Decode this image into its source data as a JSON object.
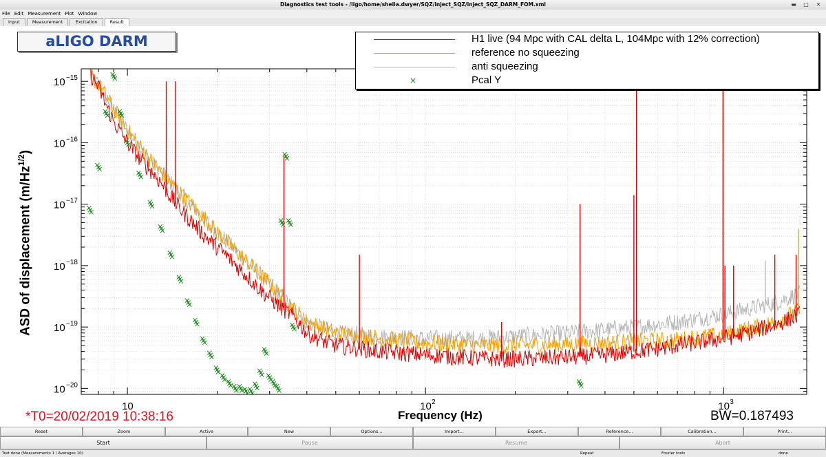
{
  "window": {
    "title": "Diagnostics test tools - /ligo/home/sheila.dwyer/SQZ/inject_SQZ/inject_SQZ_DARM_FOM.xml"
  },
  "menu": [
    "File",
    "Edit",
    "Measurement",
    "Plot",
    "Window"
  ],
  "tabs": [
    {
      "label": "Input",
      "active": false
    },
    {
      "label": "Measurement",
      "active": false
    },
    {
      "label": "Excitation",
      "active": false
    },
    {
      "label": "Result",
      "active": true
    }
  ],
  "plot": {
    "title_box": "aLIGO DARM",
    "t0": "*T0=20/02/2019 10:38:16",
    "bw": "BW=0.187493"
  },
  "chart_data": {
    "type": "line",
    "xlabel": "Frequency (Hz)",
    "ylabel": "ASD of displacement (m/Hz^1/2)",
    "x_scale": "log",
    "y_scale": "log",
    "xlim": [
      7,
      1900
    ],
    "ylim": [
      8e-21,
      1.6e-15
    ],
    "x_ticks": [
      {
        "value": 10,
        "label": "10"
      },
      {
        "value": 100,
        "label": "10"
      },
      {
        "value": 1000,
        "label": "10"
      }
    ],
    "x_tick_exponents": [
      "",
      "2",
      "3"
    ],
    "y_ticks": [
      {
        "value": 1e-15,
        "label": "10"
      },
      {
        "value": 1e-16,
        "label": "10"
      },
      {
        "value": 1e-17,
        "label": "10"
      },
      {
        "value": 1e-18,
        "label": "10"
      },
      {
        "value": 1e-19,
        "label": "10"
      },
      {
        "value": 1e-20,
        "label": "10"
      }
    ],
    "y_tick_exponents": [
      "−15",
      "−16",
      "−17",
      "−18",
      "−19",
      "−20"
    ],
    "grid": true,
    "legend_position": "top-right",
    "series": [
      {
        "name": "H1 live (94 Mpc with CAL delta L, 104Mpc with 12% correction)",
        "color": "#dd0000",
        "kind": "line",
        "x": [
          7.5,
          8,
          8.5,
          9,
          10,
          11,
          12,
          13,
          14,
          15,
          16,
          18,
          20,
          22,
          25,
          28,
          30,
          33,
          36,
          40,
          45,
          50,
          60,
          70,
          80,
          100,
          120,
          150,
          180,
          200,
          250,
          300,
          400,
          500,
          600,
          700,
          800,
          1000,
          1200,
          1500,
          1800
        ],
        "y": [
          1.3e-15,
          8e-16,
          4e-16,
          2.2e-16,
          1e-16,
          5.5e-17,
          3.5e-17,
          2.2e-17,
          1.3e-17,
          8.5e-18,
          6e-18,
          3.2e-18,
          2e-18,
          1.3e-18,
          7e-19,
          4e-19,
          3e-19,
          2e-19,
          1.5e-19,
          8e-20,
          6e-20,
          5e-20,
          4.5e-20,
          4e-20,
          3.8e-20,
          3.5e-20,
          3.3e-20,
          3.1e-20,
          3e-20,
          3e-20,
          3.1e-20,
          3.2e-20,
          3.5e-20,
          4e-20,
          4.4e-20,
          5e-20,
          5.5e-20,
          6.5e-20,
          8e-20,
          1.1e-19,
          1.6e-19
        ],
        "peaks": [
          {
            "x": 13.5,
            "y": 1e-15
          },
          {
            "x": 14.5,
            "y": 1e-15
          },
          {
            "x": 33.5,
            "y": 6e-17
          },
          {
            "x": 60,
            "y": 1.5e-18
          },
          {
            "x": 180,
            "y": 1.2e-19
          },
          {
            "x": 330,
            "y": 1e-17
          },
          {
            "x": 500,
            "y": 1.4e-17
          },
          {
            "x": 510,
            "y": 1.5e-15
          },
          {
            "x": 995,
            "y": 8e-16
          },
          {
            "x": 1010,
            "y": 1e-18
          },
          {
            "x": 1080,
            "y": 1e-18
          },
          {
            "x": 1485,
            "y": 1.5e-18
          },
          {
            "x": 1750,
            "y": 1.5e-18
          }
        ]
      },
      {
        "name": "reference no squeezing",
        "color": "#f0a000",
        "kind": "line",
        "x": [
          7.5,
          8,
          9,
          10,
          12,
          14,
          16,
          20,
          25,
          30,
          36,
          40,
          50,
          70,
          100,
          150,
          200,
          300,
          400,
          500,
          700,
          1000,
          1500,
          1800
        ],
        "y": [
          1.2e-15,
          9e-16,
          3.5e-16,
          1.6e-16,
          5e-17,
          2.2e-17,
          1.1e-17,
          3.5e-18,
          1.2e-18,
          5e-19,
          2e-19,
          1.2e-19,
          8e-20,
          6.5e-20,
          5.5e-20,
          5e-20,
          5e-20,
          5.2e-20,
          5.5e-20,
          5.8e-20,
          6.2e-20,
          7.5e-20,
          1.2e-19,
          1.9e-19
        ],
        "peaks": [
          {
            "x": 1780,
            "y": 4e-18
          }
        ]
      },
      {
        "name": "anti squeezing",
        "color": "#b4b4b4",
        "kind": "line",
        "x": [
          7.5,
          8,
          9,
          10,
          12,
          14,
          16,
          20,
          25,
          30,
          36,
          40,
          50,
          70,
          100,
          150,
          200,
          300,
          400,
          500,
          700,
          1000,
          1500,
          1800
        ],
        "y": [
          1.2e-15,
          9e-16,
          3.5e-16,
          1.6e-16,
          5e-17,
          2.2e-17,
          1.1e-17,
          3.5e-18,
          1.2e-18,
          5e-19,
          2e-19,
          1.2e-19,
          8e-20,
          7e-20,
          6.5e-20,
          6.5e-20,
          7e-20,
          8e-20,
          9e-20,
          1e-19,
          1.2e-19,
          1.6e-19,
          2.5e-19,
          3.5e-19
        ],
        "peaks": [
          {
            "x": 1380,
            "y": 1.2e-18
          }
        ]
      },
      {
        "name": "Pcal Y",
        "color": "#1a8a1a",
        "kind": "markers",
        "x": [
          7.5,
          8,
          8.5,
          9,
          9.5,
          10,
          11,
          12,
          13,
          14,
          15,
          16,
          17,
          18,
          19,
          20,
          21,
          22,
          23,
          24,
          25,
          26,
          27,
          28,
          29,
          30,
          31,
          32,
          33,
          34,
          35,
          36,
          330
        ],
        "y": [
          8e-18,
          4e-17,
          3e-16,
          1.2e-15,
          3e-16,
          1e-16,
          3e-17,
          1e-17,
          4e-18,
          1.5e-18,
          6e-19,
          2.5e-19,
          1.2e-19,
          6e-20,
          3.5e-20,
          2e-20,
          1.5e-20,
          1.2e-20,
          1e-20,
          1e-20,
          9e-21,
          9e-21,
          1.1e-20,
          1.8e-20,
          4e-20,
          1.5e-20,
          1.2e-20,
          1e-20,
          5e-18,
          6e-17,
          5e-18,
          1e-19,
          1.2e-20
        ]
      }
    ]
  },
  "buttons_row1": [
    "Reset",
    "Zoom",
    "Active",
    "New",
    "Options...",
    "Import...",
    "Export...",
    "Reference...",
    "Calibration...",
    "Print..."
  ],
  "buttons_row2": [
    {
      "label": "Start",
      "disabled": false
    },
    {
      "label": "Pause",
      "disabled": true
    },
    {
      "label": "Resume",
      "disabled": true
    },
    {
      "label": "Abort",
      "disabled": true
    }
  ],
  "status": {
    "left": "Test done (Measurements 1 / Averages 10)",
    "repeat": "Repeat",
    "fourier": "Fourier tools",
    "done": "done"
  }
}
